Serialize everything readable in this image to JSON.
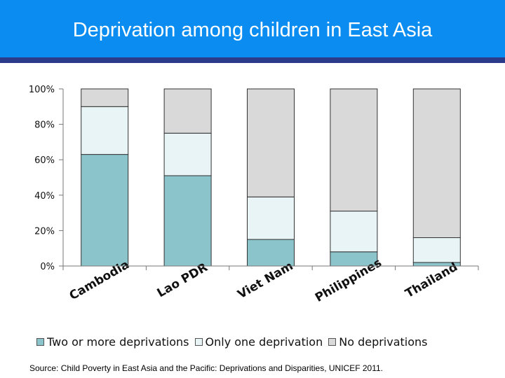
{
  "header": {
    "title": "Deprivation among children in East Asia"
  },
  "source": "Source: Child Poverty in East Asia and the Pacific: Deprivations and Disparities, UNICEF 2011.",
  "colors": {
    "header_bg": "#0a8cf0",
    "header_line": "#2c3a8c"
  },
  "chart_data": {
    "type": "bar",
    "stacked": true,
    "categories": [
      "Cambodia",
      "Lao PDR",
      "Viet Nam",
      "Philippines",
      "Thailand"
    ],
    "series": [
      {
        "name": "Two or more deprivations",
        "color": "#8cc4cc",
        "values": [
          63,
          51,
          15,
          8,
          2
        ]
      },
      {
        "name": "Only one deprivation",
        "color": "#e8f4f6",
        "values": [
          27,
          24,
          24,
          23,
          14
        ]
      },
      {
        "name": "No deprivations",
        "color": "#d9d9d9",
        "values": [
          10,
          25,
          61,
          69,
          84
        ]
      }
    ],
    "ylim": [
      0,
      100
    ],
    "yticks": [
      "0%",
      "20%",
      "40%",
      "60%",
      "80%",
      "100%"
    ],
    "legend_position": "bottom",
    "grid": false
  }
}
